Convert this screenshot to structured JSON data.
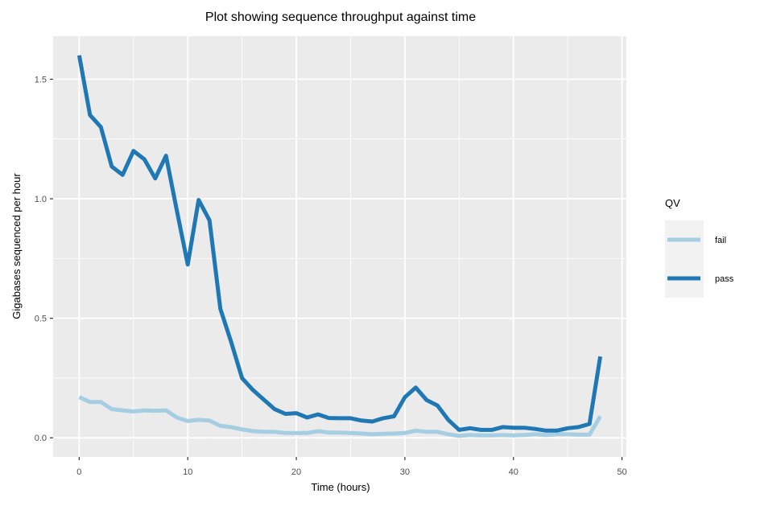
{
  "chart_data": {
    "type": "line",
    "title": "Plot showing sequence throughput against time",
    "xlabel": "Time (hours)",
    "ylabel": "Gigabases sequenced per hour",
    "xlim": [
      -2.4,
      50.4
    ],
    "ylim": [
      -0.08,
      1.68
    ],
    "x_ticks": [
      0,
      10,
      20,
      30,
      40,
      50
    ],
    "y_ticks": [
      0.0,
      0.5,
      1.0,
      1.5
    ],
    "x_tick_labels": [
      "0",
      "10",
      "20",
      "30",
      "40",
      "50"
    ],
    "y_tick_labels": [
      "0.0",
      "0.5",
      "1.0",
      "1.5"
    ],
    "grid": true,
    "legend": {
      "title": "QV",
      "position": "right"
    },
    "x": [
      0,
      1,
      2,
      3,
      4,
      5,
      6,
      7,
      8,
      9,
      10,
      11,
      12,
      13,
      14,
      15,
      16,
      17,
      18,
      19,
      20,
      21,
      22,
      23,
      24,
      25,
      26,
      27,
      28,
      29,
      30,
      31,
      32,
      33,
      34,
      35,
      36,
      37,
      38,
      39,
      40,
      41,
      42,
      43,
      44,
      45,
      46,
      47,
      48
    ],
    "series": [
      {
        "name": "fail",
        "color": "#a6cee3",
        "values": [
          0.17,
          0.15,
          0.15,
          0.12,
          0.115,
          0.11,
          0.115,
          0.113,
          0.115,
          0.085,
          0.07,
          0.075,
          0.072,
          0.05,
          0.045,
          0.035,
          0.028,
          0.025,
          0.025,
          0.02,
          0.02,
          0.02,
          0.028,
          0.022,
          0.022,
          0.02,
          0.018,
          0.015,
          0.017,
          0.018,
          0.02,
          0.03,
          0.025,
          0.025,
          0.015,
          0.008,
          0.012,
          0.01,
          0.01,
          0.012,
          0.01,
          0.012,
          0.015,
          0.012,
          0.015,
          0.015,
          0.013,
          0.013,
          0.09
        ]
      },
      {
        "name": "pass",
        "color": "#1f78b4",
        "values": [
          1.6,
          1.35,
          1.3,
          1.135,
          1.1,
          1.2,
          1.165,
          1.085,
          1.18,
          0.95,
          0.725,
          0.995,
          0.91,
          0.54,
          0.4,
          0.25,
          0.2,
          0.16,
          0.12,
          0.1,
          0.103,
          0.085,
          0.098,
          0.083,
          0.082,
          0.082,
          0.072,
          0.068,
          0.082,
          0.09,
          0.17,
          0.21,
          0.158,
          0.135,
          0.075,
          0.033,
          0.04,
          0.033,
          0.033,
          0.045,
          0.042,
          0.042,
          0.037,
          0.03,
          0.03,
          0.04,
          0.045,
          0.058,
          0.34
        ]
      }
    ]
  }
}
